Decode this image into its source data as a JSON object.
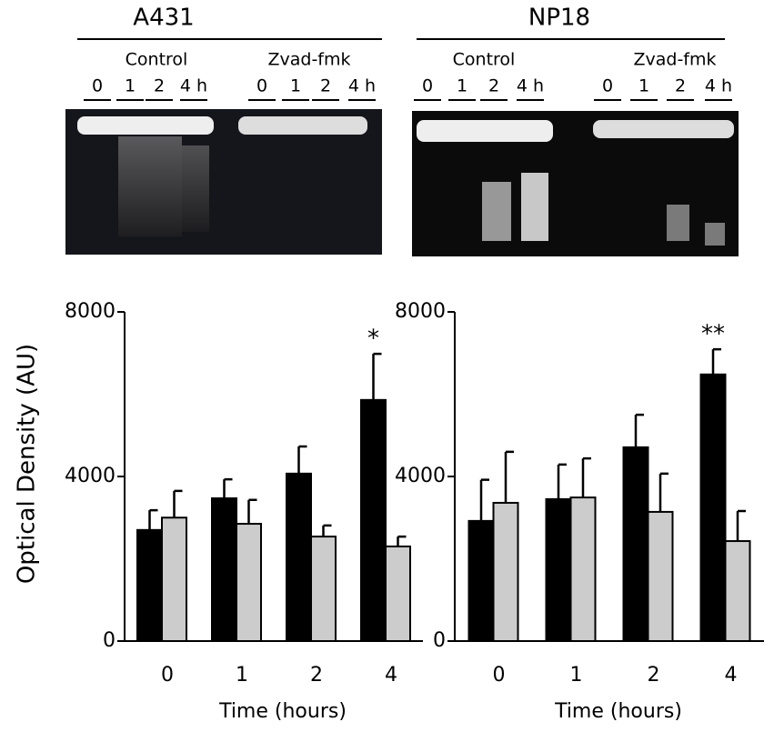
{
  "gels": [
    {
      "title": "A431",
      "groups": [
        {
          "label": "Control",
          "lanes": [
            "0",
            "1",
            "2",
            "4 h"
          ]
        },
        {
          "label": "Zvad-fmk",
          "lanes": [
            "0",
            "1",
            "2",
            "4 h"
          ]
        }
      ]
    },
    {
      "title": "NP18",
      "groups": [
        {
          "label": "Control",
          "lanes": [
            "0",
            "1",
            "2",
            "4 h"
          ]
        },
        {
          "label": "Zvad-fmk",
          "lanes": [
            "0",
            "1",
            "2",
            "4 h"
          ]
        }
      ]
    }
  ],
  "chart_data": [
    {
      "type": "bar",
      "y_label": "Optical Density (AU)",
      "x_label": "Time (hours)",
      "categories": [
        "0",
        "1",
        "2",
        "4"
      ],
      "series": [
        {
          "color": "#000000",
          "values": [
            2700,
            3470,
            4070,
            5860
          ],
          "errors": [
            480,
            460,
            660,
            1120
          ]
        },
        {
          "color": "#cccccc",
          "values": [
            3000,
            2850,
            2540,
            2300
          ],
          "errors": [
            650,
            580,
            270,
            240
          ]
        }
      ],
      "annotations": [
        {
          "text": "*",
          "series": 0,
          "category": 3
        }
      ],
      "ylim": [
        0,
        8000
      ],
      "yticks": [
        0,
        4000,
        8000
      ]
    },
    {
      "type": "bar",
      "x_label": "Time (hours)",
      "categories": [
        "0",
        "1",
        "2",
        "4"
      ],
      "series": [
        {
          "color": "#000000",
          "values": [
            2920,
            3450,
            4710,
            6480
          ],
          "errors": [
            1000,
            840,
            790,
            610
          ]
        },
        {
          "color": "#cccccc",
          "values": [
            3360,
            3490,
            3140,
            2430
          ],
          "errors": [
            1240,
            950,
            930,
            730
          ]
        }
      ],
      "annotations": [
        {
          "text": "**",
          "series": 0,
          "category": 3
        }
      ],
      "ylim": [
        0,
        8000
      ],
      "yticks": [
        0,
        4000,
        8000
      ]
    }
  ]
}
